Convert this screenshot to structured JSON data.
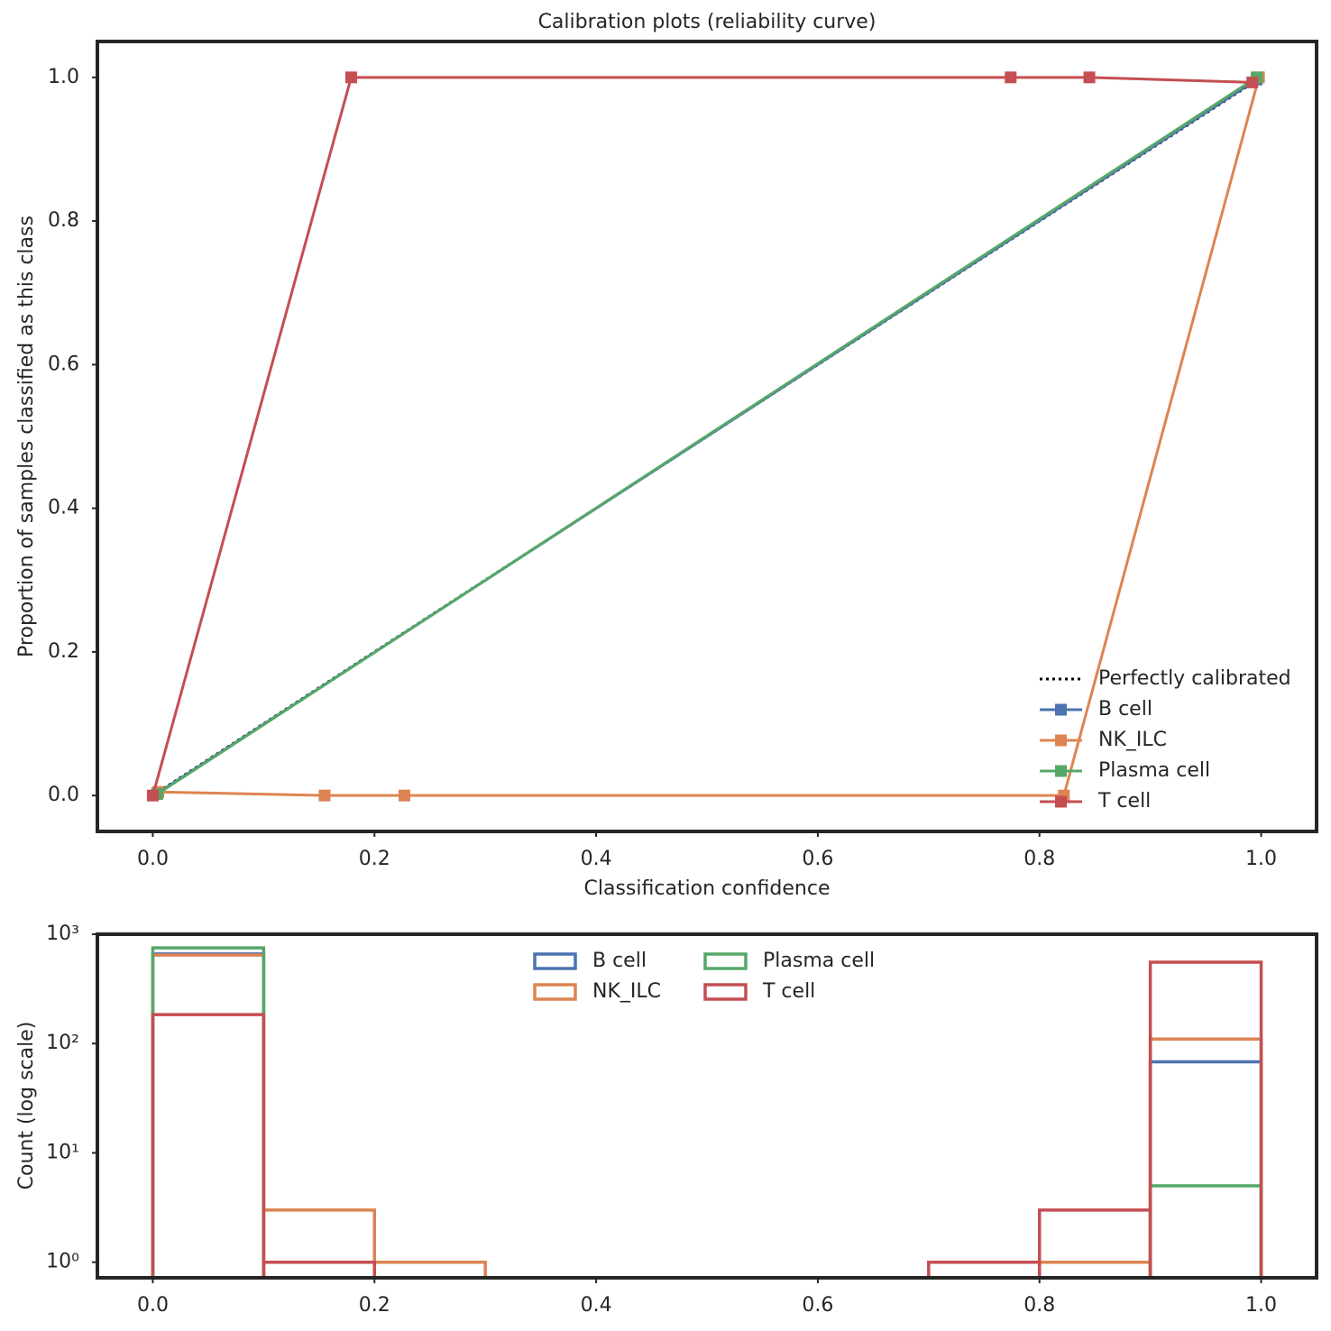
{
  "chart_data": [
    {
      "type": "line",
      "title": "Calibration plots (reliability curve)",
      "xlabel": "Classification confidence",
      "ylabel": "Proportion of samples classified as this class",
      "xlim": [
        -0.05,
        1.05
      ],
      "ylim": [
        -0.05,
        1.05
      ],
      "xticks": [
        {
          "value": 0,
          "label": "0.0"
        },
        0.2,
        0.4,
        0.6,
        0.8,
        {
          "value": 1,
          "label": "1.0"
        }
      ],
      "yticks": [
        {
          "value": 0,
          "label": "0.0"
        },
        0.2,
        0.4,
        0.6,
        0.8,
        {
          "value": 1,
          "label": "1.0"
        }
      ],
      "legend": "lower right",
      "series": [
        {
          "name": "Perfectly calibrated",
          "color": "#000000",
          "linestyle": "dotted",
          "x": [
            0,
            1
          ],
          "values": [
            0,
            1
          ]
        },
        {
          "name": "B cell",
          "color": "#4c72b0",
          "marker": "square",
          "x": [
            0.004,
            0.996
          ],
          "values": [
            0.003,
            0.997
          ]
        },
        {
          "name": "NK_ILC",
          "color": "#dd8452",
          "marker": "square",
          "x": [
            0.005,
            0.155,
            0.227,
            0.822,
            0.998
          ],
          "values": [
            0.005,
            0,
            0,
            0,
            1
          ]
        },
        {
          "name": "Plasma cell",
          "color": "#55a868",
          "marker": "square",
          "x": [
            0.004,
            0.996
          ],
          "values": [
            0.002,
            1
          ]
        },
        {
          "name": "T cell",
          "color": "#c44e52",
          "marker": "square",
          "x": [
            0,
            0.179,
            0.774,
            0.845,
            0.992
          ],
          "values": [
            0,
            1,
            1,
            1,
            0.993
          ]
        }
      ]
    },
    {
      "type": "histogram",
      "ylabel": "Count (log scale)",
      "yscale": "log",
      "xlim": [
        -0.05,
        1.05
      ],
      "ylim": [
        0.72,
        1000
      ],
      "xticks": [
        {
          "value": 0,
          "label": "0.0"
        },
        0.2,
        0.4,
        0.6,
        0.8,
        {
          "value": 1,
          "label": "1.0"
        }
      ],
      "yticks": [
        {
          "value": 1,
          "label": "10⁰"
        },
        {
          "value": 10,
          "label": "10¹"
        },
        {
          "value": 100,
          "label": "10²"
        },
        {
          "value": 1000,
          "label": "10³"
        }
      ],
      "legend": "upper center",
      "bins": [
        0,
        0.1,
        0.2,
        0.3,
        0.4,
        0.5,
        0.6,
        0.7,
        0.8,
        0.9,
        1
      ],
      "series": [
        {
          "name": "B cell",
          "color": "#4c72b0",
          "values": [
            660,
            0,
            0,
            0,
            0,
            0,
            0,
            0,
            0,
            68
          ]
        },
        {
          "name": "NK_ILC",
          "color": "#dd8452",
          "values": [
            645,
            3,
            1,
            0,
            0,
            0,
            0,
            0,
            1,
            110
          ]
        },
        {
          "name": "Plasma cell",
          "color": "#55a868",
          "values": [
            750,
            0,
            0,
            0,
            0,
            0,
            0,
            0,
            0,
            5
          ]
        },
        {
          "name": "T cell",
          "color": "#c44e52",
          "values": [
            184,
            1,
            0,
            0,
            0,
            0,
            0,
            1,
            3,
            555
          ]
        }
      ]
    }
  ]
}
